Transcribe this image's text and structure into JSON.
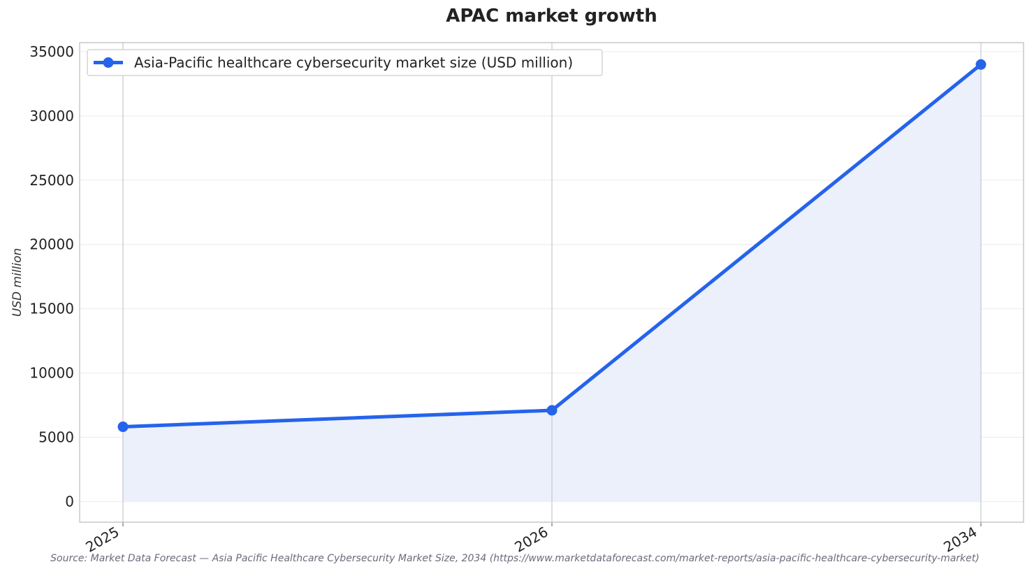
{
  "chart_data": {
    "type": "line",
    "title": "APAC market growth",
    "xlabel": "",
    "ylabel": "USD million",
    "categories": [
      "2025",
      "2026",
      "2034"
    ],
    "series": [
      {
        "name": "Asia-Pacific healthcare cybersecurity market size (USD million)",
        "values": [
          5820,
          7100,
          34000
        ]
      }
    ],
    "ylim": [
      -1600,
      35700
    ],
    "yticks": [
      0,
      5000,
      10000,
      15000,
      20000,
      25000,
      30000,
      35000
    ],
    "grid": true,
    "legend_position": "top-left",
    "area_fill": true,
    "colors": {
      "line": "#2563eb",
      "fill": "#ebf0fb",
      "grid": "#ececec",
      "vertical_lines": "#c5c8d0",
      "frame": "#c8c8c8"
    }
  },
  "source_note": "Source: Market Data Forecast — Asia Pacific Healthcare Cybersecurity Market Size, 2034 (https://www.marketdataforecast.com/market-reports/asia-pacific-healthcare-cybersecurity-market)"
}
